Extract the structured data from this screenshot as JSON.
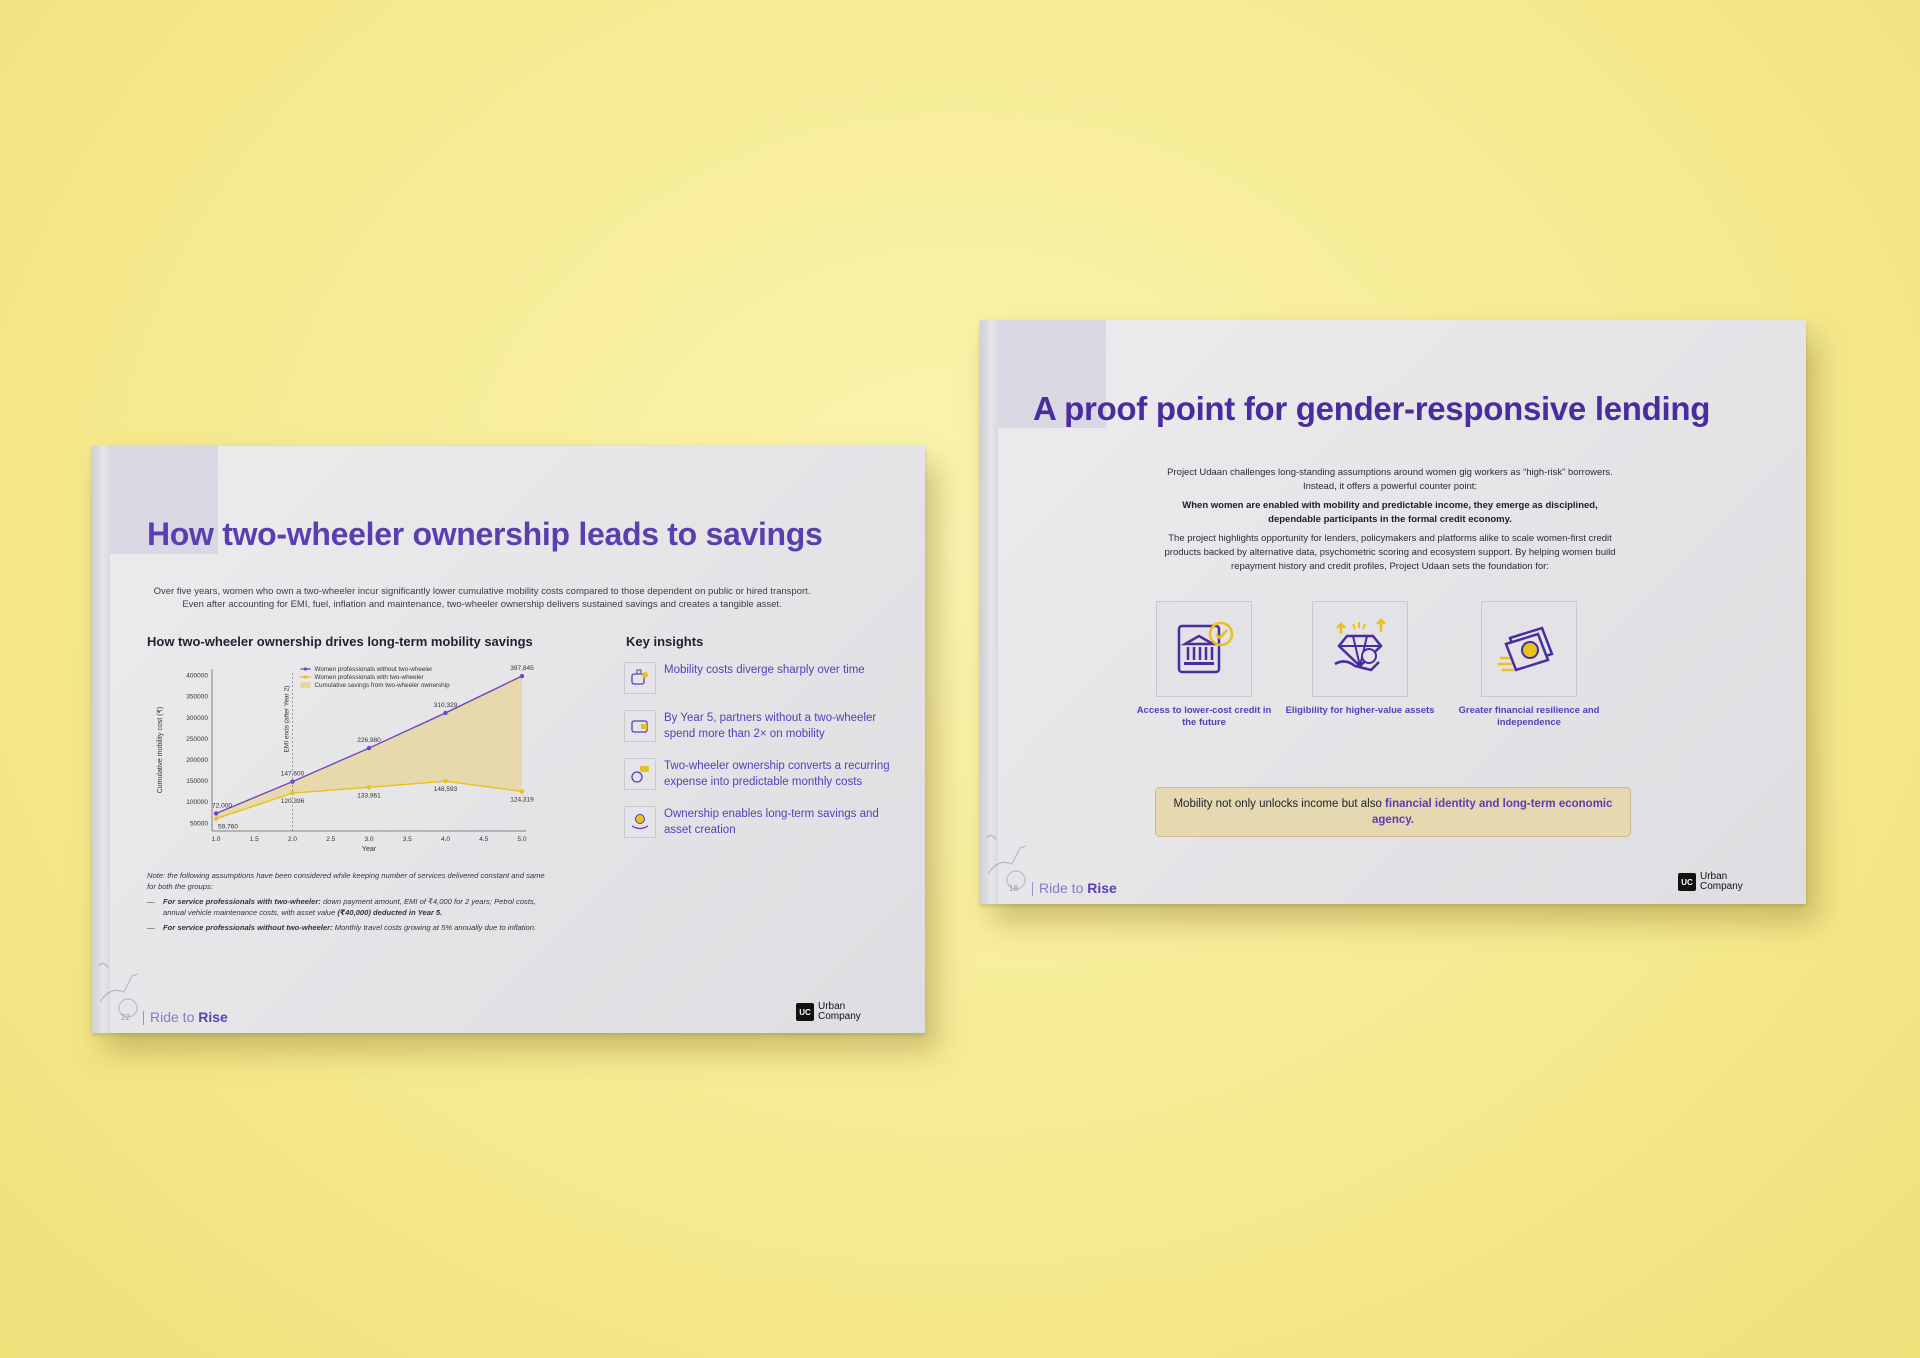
{
  "page1": {
    "title": "How two-wheeler ownership leads to savings",
    "intro": "Over five years, women who own a two-wheeler incur significantly lower cumulative mobility costs compared to those dependent on public or hired transport. Even after accounting for EMI, fuel, inflation and maintenance, two-wheeler ownership delivers sustained savings and creates a tangible asset.",
    "chart_heading": "How two-wheeler ownership drives long-term mobility savings",
    "insights_heading": "Key insights",
    "insights": [
      {
        "icon": "wallet-bag-icon",
        "text": "Mobility costs diverge sharply over time"
      },
      {
        "icon": "wallet-icon",
        "text": "By Year 5, partners without a two-wheeler spend more than 2× on mobility"
      },
      {
        "icon": "payment-chat-icon",
        "text": "Two-wheeler ownership converts a recurring expense into predictable monthly costs"
      },
      {
        "icon": "coin-hand-icon",
        "text": "Ownership enables long-term savings and asset creation"
      }
    ],
    "notes": {
      "lead": "Note: the following assumptions have been considered while keeping number of services delivered constant and same for both the groups:",
      "b1_bold": "For service professionals with two-wheeler:",
      "b1_text": " down payment amount, EMI of ₹4,000 for 2 years; Petrol costs, annual vehicle maintenance costs, with asset value ",
      "b1_bold2": "(₹40,000) deducted in Year 5.",
      "b2_bold": "For service professionals without two-wheeler:",
      "b2_text": " Monthly travel costs growing at 5% annually due to inflation."
    },
    "brand_prefix": "Ride to ",
    "brand_strong": "Rise",
    "page_number": "22",
    "logo_mark": "UC",
    "logo_line1": "Urban",
    "logo_line2": "Company"
  },
  "chart_data": {
    "type": "line",
    "title": "",
    "xlabel": "Year",
    "ylabel": "Cumulative mobility cost (₹)",
    "x": [
      1,
      2,
      3,
      4,
      5
    ],
    "xticks": [
      "1.0",
      "1.5",
      "2.0",
      "2.5",
      "3.0",
      "3.5",
      "4.0",
      "4.5",
      "5.0"
    ],
    "yticks": [
      "50000",
      "100000",
      "150000",
      "200000",
      "250000",
      "300000",
      "350000",
      "400000"
    ],
    "xlim": [
      1,
      5
    ],
    "ylim": [
      40000,
      405000
    ],
    "series": [
      {
        "name": "Women professionals with two-wheeler",
        "values": [
          59760,
          120396,
          133961,
          148593,
          124319
        ],
        "labels": [
          "59,760",
          "120,396",
          "133,961",
          "148,593",
          "124,319"
        ],
        "color": "#e8c21a"
      },
      {
        "name": "Women professionals without two-wheeler",
        "values": [
          72000,
          147600,
          226980,
          310329,
          397845
        ],
        "labels": [
          "72,000",
          "147,600",
          "226,980",
          "310,329",
          "397,845"
        ],
        "color": "#6a4cc2"
      }
    ],
    "fill_label": "Cumulative savings from two-wheeler ownership",
    "fill_color": "#e6d6a0",
    "annotation": "EMI ends (after Year 2)",
    "annotation_x": 2,
    "legend": "top",
    "grid": false
  },
  "page2": {
    "title": "A proof point for gender-responsive lending",
    "para1": "Project Udaan challenges long-standing assumptions around women gig workers as “high-risk” borrowers. Instead, it offers a powerful counter point:",
    "para2": "When women are enabled with mobility and predictable income, they emerge as disciplined, dependable participants in the formal credit economy.",
    "para3": "The project highlights opportunity for lenders, policymakers and platforms alike to scale women-first credit products backed by alternative data, psychometric scoring and ecosystem support. By helping women build repayment history and credit profiles, Project Udaan sets the foundation for:",
    "features": [
      {
        "icon": "bank-check-icon",
        "label": "Access to lower-cost credit in the future"
      },
      {
        "icon": "diamond-rupee-icon",
        "label": "Eligibility for higher-value assets"
      },
      {
        "icon": "rupee-notes-icon",
        "label": "Greater financial resilience and independence"
      }
    ],
    "callout_text": "Mobility not only unlocks income but also ",
    "callout_highlight": "financial identity and long-term economic agency.",
    "brand_prefix": "Ride to ",
    "brand_strong": "Rise",
    "page_number": "18",
    "logo_mark": "UC",
    "logo_line1": "Urban",
    "logo_line2": "Company"
  }
}
